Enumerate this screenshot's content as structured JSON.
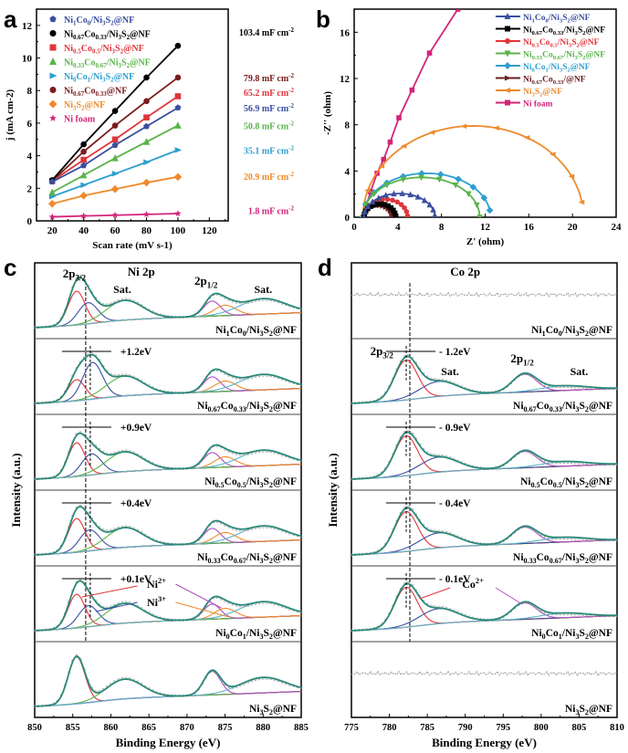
{
  "panel_labels": {
    "a": "a",
    "b": "b",
    "c": "c",
    "d": "d"
  },
  "chart_data": [
    {
      "id": "a",
      "type": "scatter",
      "xlabel": "Scan rate (mV s-1)",
      "ylabel": "j (mA cm-2)",
      "xlim": [
        10,
        132
      ],
      "ylim": [
        0,
        13
      ],
      "xticks": [
        20,
        40,
        60,
        80,
        100,
        120
      ],
      "yticks": [
        0,
        2,
        4,
        6,
        8,
        10,
        12
      ],
      "legend_position": "top-left",
      "x": [
        20,
        40,
        60,
        80,
        100
      ],
      "series": [
        {
          "name": "Ni1Co0/Ni3S2@NF",
          "color": "#3a4fa0",
          "marker": "pentagon",
          "values": [
            2.4,
            3.4,
            4.65,
            5.8,
            6.95
          ],
          "annotation": "56.9 mF cm-2"
        },
        {
          "name": "Ni0.67Co0.33/Ni3S2@NF",
          "color": "#000000",
          "marker": "circle",
          "values": [
            2.5,
            4.7,
            6.75,
            8.8,
            10.75
          ],
          "annotation": "103.4 mF cm-2"
        },
        {
          "name": "Ni0.5Co0.5/Ni3S2@NF",
          "color": "#e0353a",
          "marker": "square",
          "values": [
            2.45,
            3.75,
            5.0,
            6.35,
            7.65
          ],
          "annotation": "65.2 mF cm-2"
        },
        {
          "name": "Ni0.33Co0.67/Ni3S2@NF",
          "color": "#5ab44a",
          "marker": "triangle-up",
          "values": [
            1.75,
            2.8,
            3.85,
            4.85,
            5.85
          ],
          "annotation": "50.8 mF cm-2"
        },
        {
          "name": "Ni0Co1/Ni3S2@NF",
          "color": "#2e9fcf",
          "marker": "triangle-right",
          "values": [
            1.5,
            2.2,
            2.9,
            3.6,
            4.35
          ],
          "annotation": "35.1 mF cm-2"
        },
        {
          "name": "Ni0.67Co0.33@NF",
          "color": "#7a1c1c",
          "marker": "circle",
          "values": [
            2.45,
            4.25,
            5.85,
            7.35,
            8.8
          ],
          "annotation": "79.8 mF cm-2"
        },
        {
          "name": "Ni3S2@NF",
          "color": "#ef8a2c",
          "marker": "diamond",
          "values": [
            1.05,
            1.55,
            1.95,
            2.35,
            2.7
          ],
          "annotation": "20.9 mF cm-2"
        },
        {
          "name": "Ni foam",
          "color": "#d4237a",
          "marker": "star",
          "values": [
            0.25,
            0.3,
            0.35,
            0.4,
            0.45
          ],
          "annotation": "1.8 mF cm-2"
        }
      ]
    },
    {
      "id": "b",
      "type": "line",
      "xlabel": "Z' (ohm)",
      "ylabel": "-Z'' (ohm)",
      "xlim": [
        0,
        24
      ],
      "ylim": [
        0,
        18
      ],
      "xticks": [
        0,
        4,
        8,
        12,
        16,
        20,
        24
      ],
      "yticks": [
        0,
        4,
        8,
        12,
        16
      ],
      "legend_position": "top-right",
      "series": [
        {
          "name": "Ni1Co0/Ni3S2@NF",
          "color": "#3a4fa0",
          "marker": "triangle-up",
          "shape": "semicircle",
          "x_start": 0.9,
          "x_end": 7.4,
          "peak": 2.05
        },
        {
          "name": "Ni0.67Co0.33/Ni3S2@NF",
          "color": "#000000",
          "marker": "square",
          "shape": "semicircle",
          "x_start": 0.9,
          "x_end": 3.8,
          "peak": 1.15
        },
        {
          "name": "Ni0.5Co0.5/Ni3S2@NF",
          "color": "#e0353a",
          "marker": "circle",
          "shape": "semicircle",
          "x_start": 0.9,
          "x_end": 4.9,
          "peak": 1.55
        },
        {
          "name": "Ni0.33Co0.67/Ni3S2@NF",
          "color": "#5ab44a",
          "marker": "triangle-down",
          "shape": "semicircle",
          "x_start": 0.8,
          "x_end": 11.5,
          "peak": 3.45
        },
        {
          "name": "Ni0Co1/Ni3S2@NF",
          "color": "#2e9fcf",
          "marker": "diamond",
          "shape": "semicircle",
          "x_start": 0.8,
          "x_end": 12.5,
          "peak": 3.8,
          "open_end": 0.6
        },
        {
          "name": "Ni0.67Co0.33/@NF",
          "color": "#6a2020",
          "marker": "triangle-right",
          "shape": "semicircle",
          "x_start": 0.9,
          "x_end": 3.5,
          "peak": 1.0
        },
        {
          "name": "Ni3S2@NF",
          "color": "#ef8a2c",
          "marker": "triangle-left",
          "shape": "semicircle",
          "x_start": 0.8,
          "x_end": 21.0,
          "peak": 7.9,
          "open_end": 1.3
        },
        {
          "name": "Ni foam",
          "color": "#d4237a",
          "marker": "square",
          "shape": "line",
          "points": [
            [
              0.8,
              0
            ],
            [
              1.5,
              2.2
            ],
            [
              2.1,
              3.8
            ],
            [
              2.7,
              5.0
            ],
            [
              3.3,
              6.5
            ],
            [
              4.1,
              8.6
            ],
            [
              5.3,
              11.0
            ],
            [
              6.9,
              14.2
            ],
            [
              9.5,
              18.0
            ]
          ]
        }
      ]
    },
    {
      "id": "c",
      "type": "line",
      "title": "Ni 2p",
      "xlabel": "Binding Energy (eV)",
      "ylabel": "Intensity (a.u.)",
      "xlim": [
        850,
        885
      ],
      "xticks": [
        850,
        855,
        860,
        865,
        870,
        875,
        880,
        885
      ],
      "peak_labels": [
        "2p3/2",
        "Sat.",
        "2p1/2",
        "Sat."
      ],
      "reference_line_eV": 856.7,
      "ion_labels": [
        "Ni2+",
        "Ni3+"
      ],
      "stacks": [
        {
          "sample": "Ni1Co0/Ni3S2@NF",
          "shift": ""
        },
        {
          "sample": "Ni0.67Co0.33/Ni3S2@NF",
          "shift": "+1.2eV"
        },
        {
          "sample": "Ni0.5Co0.5/Ni3S2@NF",
          "shift": "+0.9eV"
        },
        {
          "sample": "Ni0.33Co0.67/Ni3S2@NF",
          "shift": "+0.4eV"
        },
        {
          "sample": "Ni0Co1/Ni3S2@NF",
          "shift": "+0.1eV"
        },
        {
          "sample": "Ni3S2@NF",
          "shift": ""
        }
      ]
    },
    {
      "id": "d",
      "type": "line",
      "title": "Co 2p",
      "xlabel": "Binding Energy (eV)",
      "ylabel": "Intensity (a.u.)",
      "xlim": [
        775,
        810
      ],
      "xticks": [
        775,
        780,
        785,
        790,
        795,
        800,
        805,
        810
      ],
      "peak_labels": [
        "2p3/2",
        "Sat.",
        "2p1/2",
        "Sat."
      ],
      "reference_line_eV": 782.7,
      "ion_labels": [
        "Co2+"
      ],
      "stacks": [
        {
          "sample": "Ni1Co0/Ni3S2@NF",
          "shift": ""
        },
        {
          "sample": "Ni0.67Co0.33/Ni3S2@NF",
          "shift": "- 1.2eV"
        },
        {
          "sample": "Ni0.5Co0.5/Ni3S2@NF",
          "shift": "- 0.9eV"
        },
        {
          "sample": "Ni0.33Co0.67/Ni3S2@NF",
          "shift": "- 0.4eV"
        },
        {
          "sample": "Ni0Co1/Ni3S2@NF",
          "shift": "- 0.1eV"
        },
        {
          "sample": "Ni3S2@NF",
          "shift": ""
        }
      ]
    }
  ]
}
